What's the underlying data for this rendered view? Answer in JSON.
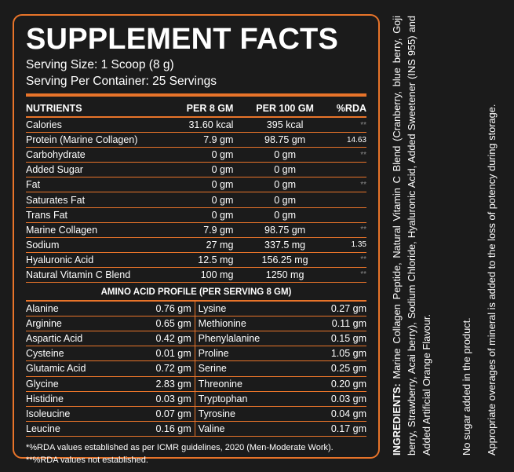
{
  "title": "SUPPLEMENT FACTS",
  "serving_size": "Serving Size: 1 Scoop (8 g)",
  "serving_per_container": "Serving Per Container: 25 Servings",
  "colors": {
    "accent": "#e8742a",
    "background": "#1b1b1b",
    "text": "#ffffff"
  },
  "nutrients": {
    "headers": [
      "NUTRIENTS",
      "PER 8 GM",
      "PER 100 GM",
      "%RDA"
    ],
    "rows": [
      {
        "name": "Calories",
        "per8": "31.60 kcal",
        "per100": "395 kcal",
        "rda": "**"
      },
      {
        "name": "Protein (Marine Collagen)",
        "per8": "7.9 gm",
        "per100": "98.75 gm",
        "rda": "14.63"
      },
      {
        "name": "Carbohydrate",
        "per8": "0 gm",
        "per100": "0 gm",
        "rda": "**"
      },
      {
        "name": "Added Sugar",
        "per8": "0 gm",
        "per100": "0 gm",
        "rda": ""
      },
      {
        "name": "Fat",
        "per8": "0 gm",
        "per100": "0 gm",
        "rda": "**"
      },
      {
        "name": "Saturates Fat",
        "per8": "0 gm",
        "per100": "0 gm",
        "rda": ""
      },
      {
        "name": "Trans Fat",
        "per8": "0 gm",
        "per100": "0 gm",
        "rda": ""
      },
      {
        "name": "Marine Collagen",
        "per8": "7.9 gm",
        "per100": "98.75 gm",
        "rda": "**"
      },
      {
        "name": "Sodium",
        "per8": "27 mg",
        "per100": "337.5 mg",
        "rda": "1.35"
      },
      {
        "name": "Hyaluronic Acid",
        "per8": "12.5 mg",
        "per100": "156.25 mg",
        "rda": "**"
      },
      {
        "name": "Natural Vitamin C Blend",
        "per8": "100 mg",
        "per100": "1250 mg",
        "rda": "**"
      }
    ]
  },
  "amino": {
    "title": "AMINO ACID PROFILE (PER SERVING 8 GM)",
    "rows": [
      {
        "n1": "Alanine",
        "v1": "0.76 gm",
        "n2": "Lysine",
        "v2": "0.27 gm"
      },
      {
        "n1": "Arginine",
        "v1": "0.65 gm",
        "n2": "Methionine",
        "v2": "0.11 gm"
      },
      {
        "n1": "Aspartic Acid",
        "v1": "0.42 gm",
        "n2": "Phenylalanine",
        "v2": "0.15 gm"
      },
      {
        "n1": "Cysteine",
        "v1": "0.01 gm",
        "n2": "Proline",
        "v2": "1.05 gm"
      },
      {
        "n1": "Glutamic Acid",
        "v1": "0.72 gm",
        "n2": "Serine",
        "v2": "0.25 gm"
      },
      {
        "n1": "Glycine",
        "v1": "2.83 gm",
        "n2": "Threonine",
        "v2": "0.20 gm"
      },
      {
        "n1": "Histidine",
        "v1": "0.03 gm",
        "n2": "Tryptophan",
        "v2": "0.03 gm"
      },
      {
        "n1": "Isoleucine",
        "v1": "0.07 gm",
        "n2": "Tyrosine",
        "v2": "0.04 gm"
      },
      {
        "n1": "Leucine",
        "v1": "0.16 gm",
        "n2": "Valine",
        "v2": "0.17 gm"
      }
    ]
  },
  "footnote": "*%RDA values established as per ICMR guidelines, 2020 (Men-Moderate Work). **%RDA values not established.",
  "ingredients_label": "INGREDIENTS:",
  "ingredients_text": "Marine Collagen Peptide, Natural Vitamin C Blend (Cranberry, blue berry, Goji berry, Strawberry, Acai berry), Sodium Chloride, Hyaluronic Acid, Added Sweetener (INS 955) and Added Artificial Orange Flavour.",
  "no_sugar": "No sugar added in the product.",
  "appropriate": "Appropriate overages of mineral is added to the loss of potency during storage."
}
